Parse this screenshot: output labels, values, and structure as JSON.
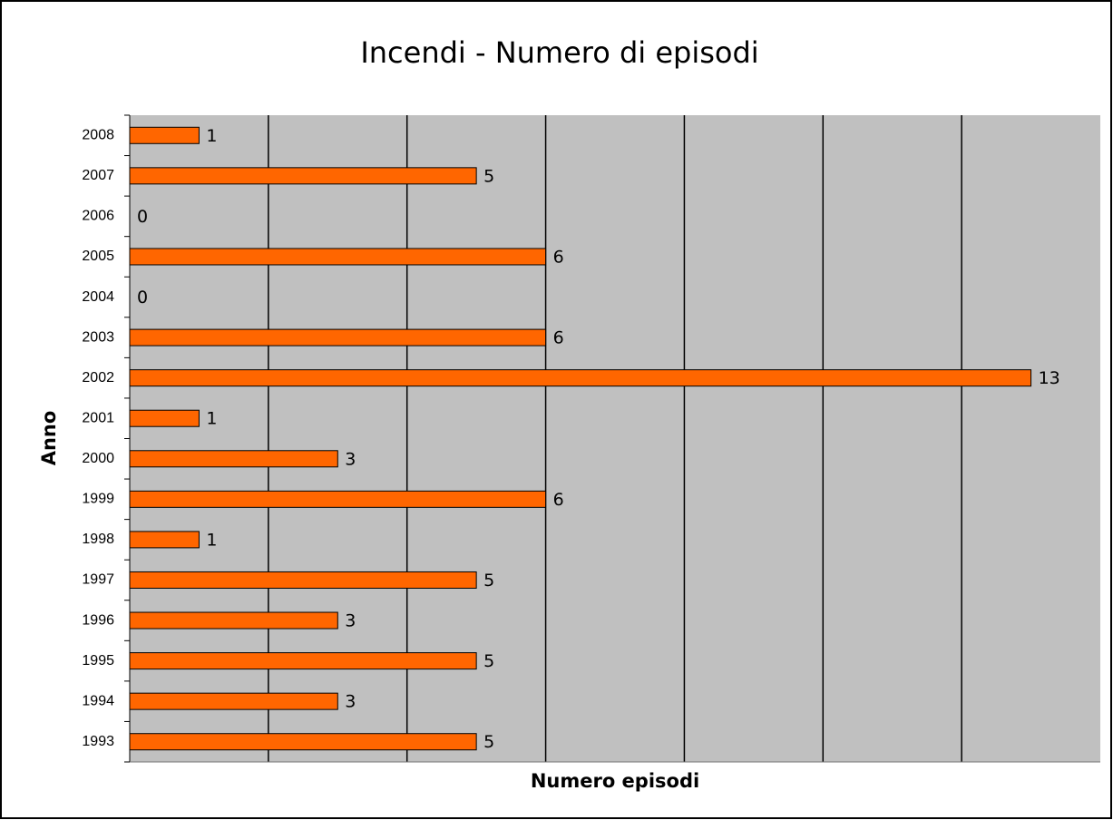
{
  "chart_data": {
    "type": "bar",
    "orientation": "horizontal",
    "title": "Incendi - Numero di episodi",
    "x_label": "Numero episodi",
    "y_label": "Anno",
    "categories": [
      "1993",
      "1994",
      "1995",
      "1996",
      "1997",
      "1998",
      "1999",
      "2000",
      "2001",
      "2002",
      "2003",
      "2004",
      "2005",
      "2006",
      "2007",
      "2008"
    ],
    "values": [
      5,
      3,
      5,
      3,
      5,
      1,
      6,
      3,
      1,
      13,
      6,
      0,
      6,
      0,
      5,
      1
    ],
    "color": "#ff6600",
    "xlim": [
      0,
      14
    ],
    "xticks": [
      2,
      4,
      6,
      8,
      10,
      12
    ],
    "grid": true
  }
}
